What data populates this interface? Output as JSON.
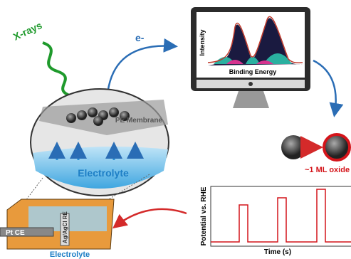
{
  "xray_label": "X-rays",
  "electron_label": "e-",
  "spectrum": {
    "y_label": "Intensity",
    "x_label": "Binding Energy"
  },
  "membrane_label": "PE Membrane",
  "electrolyte_label": "Electrolyte",
  "oxide_label": "~1 ML oxide",
  "cell": {
    "counter_electrode": "Pt CE",
    "reference_electrode": "Ag/AgCl RE",
    "electrolyte": "Electrolyte"
  },
  "potential_plot": {
    "y_label": "Potential vs. RHE",
    "x_label": "Time (s)"
  }
}
